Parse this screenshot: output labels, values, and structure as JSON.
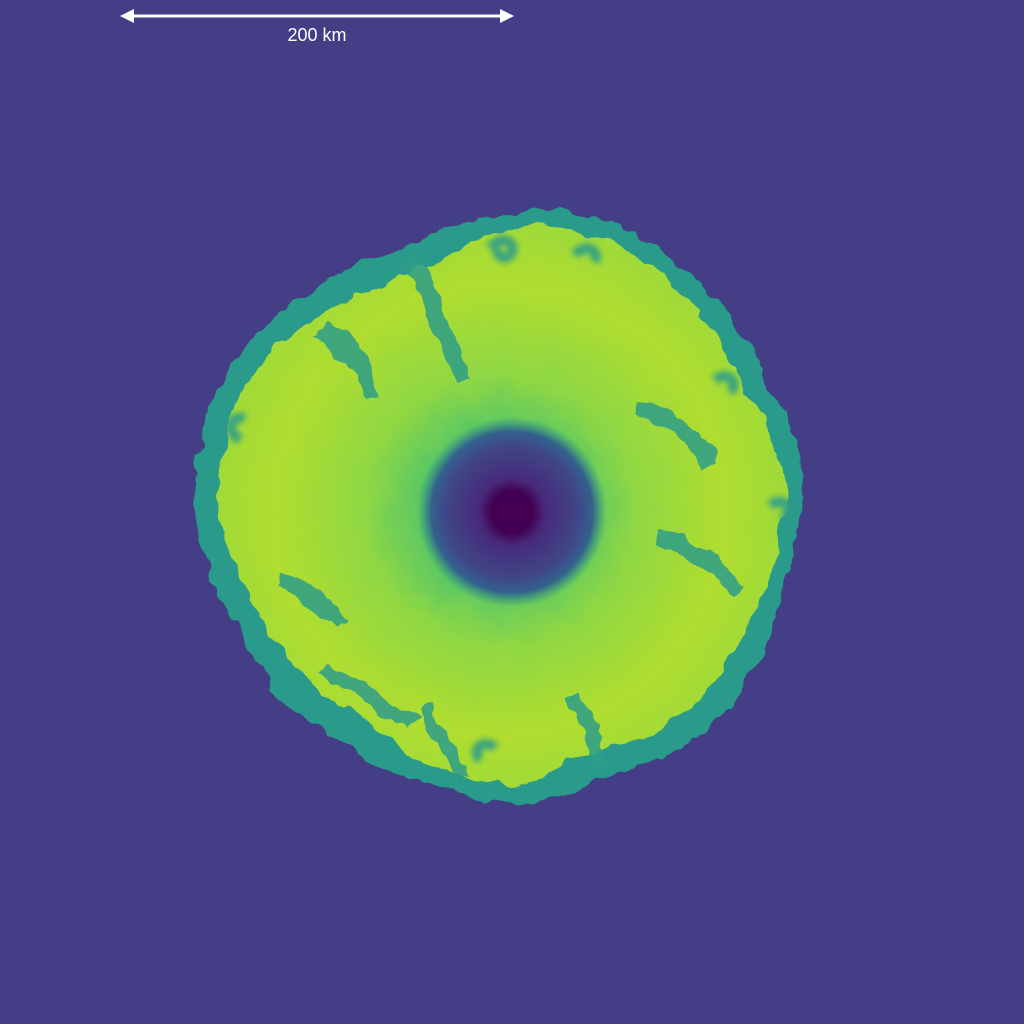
{
  "scale_bar": {
    "label": "200 km",
    "color": "#ffffff"
  },
  "colors": {
    "background": "#433e85",
    "core_center": "#440154",
    "core_mid": "#46327e",
    "shell_teal": "#2a9a8a",
    "plume_green": "#8fd744",
    "plume_yellow": "#b8de29"
  }
}
